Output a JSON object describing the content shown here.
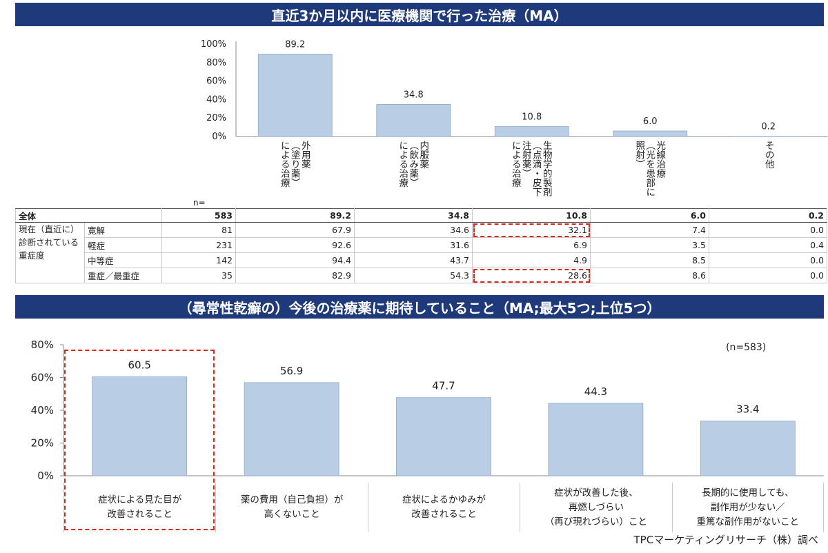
{
  "chart_data": [
    {
      "type": "bar",
      "title": "直近3か月以内に医療機関で行った治療（MA）",
      "categories": [
        "外用薬（塗り薬）による治療",
        "内服薬（飲み薬）による治療",
        "生物学的製剤（点滴・皮下注射薬）による治療",
        "光線治療（光を患部に照射）",
        "その他"
      ],
      "values": [
        89.2,
        34.8,
        10.8,
        6.0,
        0.2
      ],
      "value_labels": [
        "89.2",
        "34.8",
        "10.8",
        "6.0",
        "0.2"
      ],
      "yticks": [
        "100%",
        "80%",
        "60%",
        "40%",
        "20%",
        "0%"
      ],
      "ylim": [
        0,
        100
      ],
      "label_columns": [
        [
          "外用薬",
          "（塗り薬）",
          "による治療"
        ],
        [
          "内服薬",
          "（飲み薬）",
          "による治療"
        ],
        [
          "生物学的製剤",
          "（点滴・皮下",
          "注射薬）",
          "による治療"
        ],
        [
          "光線治療",
          "（光を患部に",
          "照射）"
        ],
        [
          "その他"
        ]
      ],
      "table": {
        "n_header": "n=",
        "total": {
          "label": "全体",
          "n": "583",
          "values": [
            "89.2",
            "34.8",
            "10.8",
            "6.0",
            "0.2"
          ]
        },
        "group_label": "現在（直近に）診断されている重症度",
        "group_label_lines": [
          "現在（直近に）",
          "診断されている",
          "重症度"
        ],
        "rows": [
          {
            "label": "寛解",
            "n": "81",
            "values": [
              "67.9",
              "34.6",
              "32.1",
              "7.4",
              "0.0"
            ]
          },
          {
            "label": "軽症",
            "n": "231",
            "values": [
              "92.6",
              "31.6",
              "6.9",
              "3.5",
              "0.4"
            ]
          },
          {
            "label": "中等症",
            "n": "142",
            "values": [
              "94.4",
              "43.7",
              "4.9",
              "8.5",
              "0.0"
            ]
          },
          {
            "label": "重症／最重症",
            "n": "35",
            "values": [
              "82.9",
              "54.3",
              "28.6",
              "8.6",
              "0.0"
            ]
          }
        ]
      },
      "highlights": [
        "寛解 / 生物学的製剤 = 32.1",
        "重症／最重症 / 生物学的製剤 = 28.6"
      ],
      "grid": false,
      "bar_color": "#b9cde5"
    },
    {
      "type": "bar",
      "title": "（尋常性乾癬の）今後の治療薬に期待していること（MA;最大5つ;上位5つ）",
      "categories": [
        "症状による見た目が改善されること",
        "薬の費用（自己負担）が高くないこと",
        "症状によるかゆみが改善されること",
        "症状が改善した後、再燃しづらい（再び現れづらい）こと",
        "長期的に使用しても、副作用が少ない／重篤な副作用がないこと"
      ],
      "category_lines": [
        [
          "症状による見た目が",
          "改善されること"
        ],
        [
          "薬の費用（自己負担）が",
          "高くないこと"
        ],
        [
          "症状によるかゆみが",
          "改善されること"
        ],
        [
          "症状が改善した後、",
          "再燃しづらい",
          "（再び現れづらい）こと"
        ],
        [
          "長期的に使用しても、",
          "副作用が少ない／",
          "重篤な副作用がないこと"
        ]
      ],
      "values": [
        60.5,
        56.9,
        47.7,
        44.3,
        33.4
      ],
      "value_labels": [
        "60.5",
        "56.9",
        "47.7",
        "44.3",
        "33.4"
      ],
      "yticks": [
        "80%",
        "60%",
        "40%",
        "20%",
        "0%"
      ],
      "ylim": [
        0,
        80
      ],
      "n_label": "(n=583)",
      "highlight_category": "症状による見た目が改善されること",
      "grid": false,
      "bar_color": "#b9cde5"
    }
  ],
  "source": "TPCマーケティングリサーチ（株）調べ",
  "colors": {
    "banner": "#1f3a7a",
    "bar": "#b9cde5",
    "highlight": "#e0241b"
  }
}
